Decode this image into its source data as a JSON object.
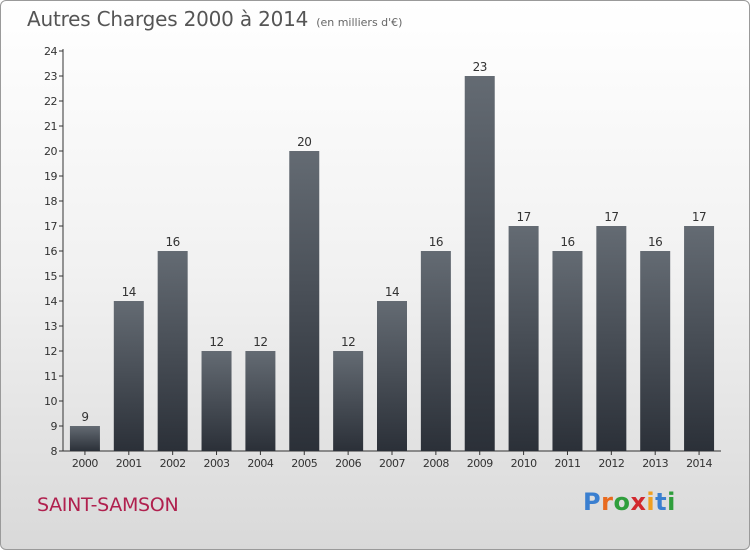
{
  "header": {
    "title": "Autres Charges 2000 à 2014",
    "subtitle": "(en milliers d'€)"
  },
  "footer": {
    "town": "SAINT-SAMSON",
    "brand": "Proxiti",
    "brand_colors": [
      "#3a7fd0",
      "#e86a1e",
      "#2f9e3c",
      "#d2282e",
      "#f0a020",
      "#3a7fd0",
      "#2f9e3c"
    ]
  },
  "colors": {
    "bar_top": "#646b73",
    "bar_bottom": "#2b3038",
    "town": "#b0204e"
  },
  "chart_data": {
    "type": "bar",
    "title": "Autres Charges 2000 à 2014",
    "subtitle": "(en milliers d'€)",
    "xlabel": "",
    "ylabel": "",
    "categories": [
      "2000",
      "2001",
      "2002",
      "2003",
      "2004",
      "2005",
      "2006",
      "2007",
      "2008",
      "2009",
      "2010",
      "2011",
      "2012",
      "2013",
      "2014"
    ],
    "values": [
      9,
      14,
      16,
      12,
      12,
      20,
      12,
      14,
      16,
      23,
      17,
      16,
      17,
      16,
      17
    ],
    "ylim": [
      8,
      24
    ],
    "yticks": [
      8,
      9,
      10,
      11,
      12,
      13,
      14,
      15,
      16,
      17,
      18,
      19,
      20,
      21,
      22,
      23,
      24
    ],
    "grid": false,
    "data_labels": true
  }
}
